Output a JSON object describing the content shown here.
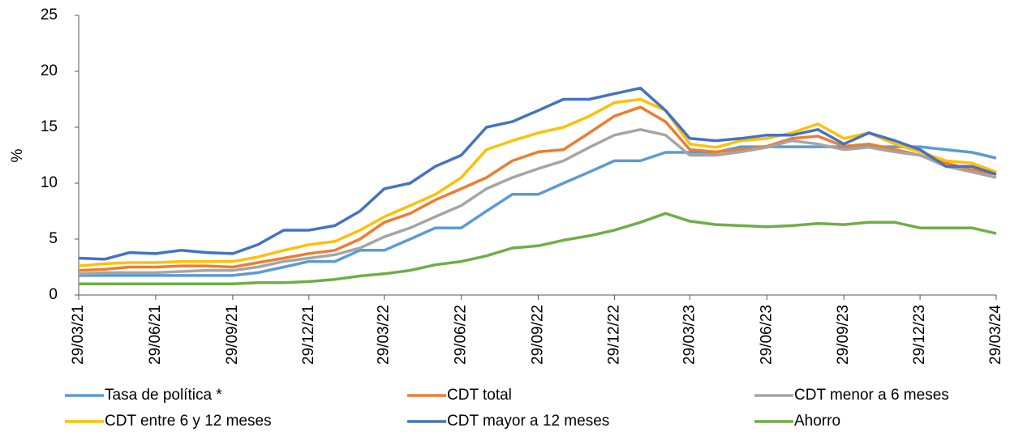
{
  "chart_data": {
    "type": "line",
    "y_label": "%",
    "x": [
      "29/03/21",
      "29/04/21",
      "29/05/21",
      "29/06/21",
      "29/07/21",
      "29/08/21",
      "29/09/21",
      "29/10/21",
      "29/11/21",
      "29/12/21",
      "29/01/22",
      "28/02/22",
      "29/03/22",
      "29/04/22",
      "29/05/22",
      "29/06/22",
      "29/07/22",
      "29/08/22",
      "29/09/22",
      "29/10/22",
      "29/11/22",
      "29/12/22",
      "29/01/23",
      "28/02/23",
      "29/03/23",
      "29/04/23",
      "29/05/23",
      "29/06/23",
      "29/07/23",
      "29/08/23",
      "29/09/23",
      "29/10/23",
      "29/11/23",
      "29/12/23",
      "29/01/24",
      "29/02/24",
      "29/03/24"
    ],
    "xlim": [
      "29/03/21",
      "29/03/24"
    ],
    "xticks": [
      "29/03/21",
      "29/06/21",
      "29/09/21",
      "29/12/21",
      "29/03/22",
      "29/06/22",
      "29/09/22",
      "29/12/22",
      "29/03/23",
      "29/06/23",
      "29/09/23",
      "29/12/23",
      "29/03/24"
    ],
    "ylim": [
      0,
      25
    ],
    "yticks": [
      0,
      5,
      10,
      15,
      20,
      25
    ],
    "grid": false,
    "series": [
      {
        "name": "Tasa de política *",
        "color": "#5b9bd5",
        "values": [
          1.75,
          1.75,
          1.75,
          1.75,
          1.75,
          1.75,
          1.75,
          2.0,
          2.5,
          3.0,
          3.0,
          4.0,
          4.0,
          5.0,
          6.0,
          6.0,
          7.5,
          9.0,
          9.0,
          10.0,
          11.0,
          12.0,
          12.0,
          12.75,
          12.75,
          12.75,
          13.25,
          13.25,
          13.25,
          13.25,
          13.25,
          13.25,
          13.25,
          13.25,
          13.0,
          12.75,
          12.25
        ]
      },
      {
        "name": "CDT total",
        "color": "#ed7d31",
        "values": [
          2.2,
          2.3,
          2.5,
          2.5,
          2.6,
          2.6,
          2.5,
          2.9,
          3.3,
          3.7,
          4.0,
          5.0,
          6.5,
          7.3,
          8.5,
          9.5,
          10.5,
          12.0,
          12.8,
          13.0,
          14.5,
          16.0,
          16.8,
          15.5,
          13.0,
          12.8,
          13.0,
          13.3,
          14.0,
          14.2,
          13.3,
          13.5,
          13.0,
          12.5,
          11.8,
          11.2,
          10.8
        ]
      },
      {
        "name": "CDT menor a 6 meses",
        "color": "#a5a5a5",
        "values": [
          1.9,
          2.0,
          2.0,
          2.0,
          2.1,
          2.2,
          2.2,
          2.5,
          3.0,
          3.3,
          3.6,
          4.2,
          5.2,
          6.0,
          7.0,
          8.0,
          9.5,
          10.5,
          11.3,
          12.0,
          13.2,
          14.3,
          14.8,
          14.3,
          12.5,
          12.5,
          12.8,
          13.2,
          13.8,
          13.5,
          13.0,
          13.2,
          12.8,
          12.5,
          11.5,
          11.0,
          10.5
        ]
      },
      {
        "name": "CDT entre 6 y 12 meses",
        "color": "#ffc000",
        "values": [
          2.6,
          2.8,
          2.9,
          2.9,
          3.0,
          3.0,
          3.0,
          3.4,
          4.0,
          4.5,
          4.8,
          5.8,
          7.0,
          8.0,
          9.0,
          10.5,
          13.0,
          13.8,
          14.5,
          15.0,
          16.0,
          17.2,
          17.5,
          16.5,
          13.5,
          13.2,
          13.8,
          14.0,
          14.5,
          15.3,
          14.0,
          14.5,
          13.5,
          12.8,
          12.0,
          11.8,
          11.0
        ]
      },
      {
        "name": "CDT mayor a 12 meses",
        "color": "#4472c4",
        "values": [
          3.3,
          3.2,
          3.8,
          3.7,
          4.0,
          3.8,
          3.7,
          4.5,
          5.8,
          5.8,
          6.2,
          7.5,
          9.5,
          10.0,
          11.5,
          12.5,
          15.0,
          15.5,
          16.5,
          17.5,
          17.5,
          18.0,
          18.5,
          16.5,
          14.0,
          13.8,
          14.0,
          14.3,
          14.3,
          14.8,
          13.5,
          14.5,
          13.8,
          13.0,
          11.5,
          11.5,
          10.8
        ]
      },
      {
        "name": "Ahorro",
        "color": "#70ad47",
        "values": [
          1.0,
          1.0,
          1.0,
          1.0,
          1.0,
          1.0,
          1.0,
          1.1,
          1.1,
          1.2,
          1.4,
          1.7,
          1.9,
          2.2,
          2.7,
          3.0,
          3.5,
          4.2,
          4.4,
          4.9,
          5.3,
          5.8,
          6.5,
          7.3,
          6.6,
          6.3,
          6.2,
          6.1,
          6.2,
          6.4,
          6.3,
          6.5,
          6.5,
          6.0,
          6.0,
          6.0,
          5.5
        ]
      }
    ]
  }
}
